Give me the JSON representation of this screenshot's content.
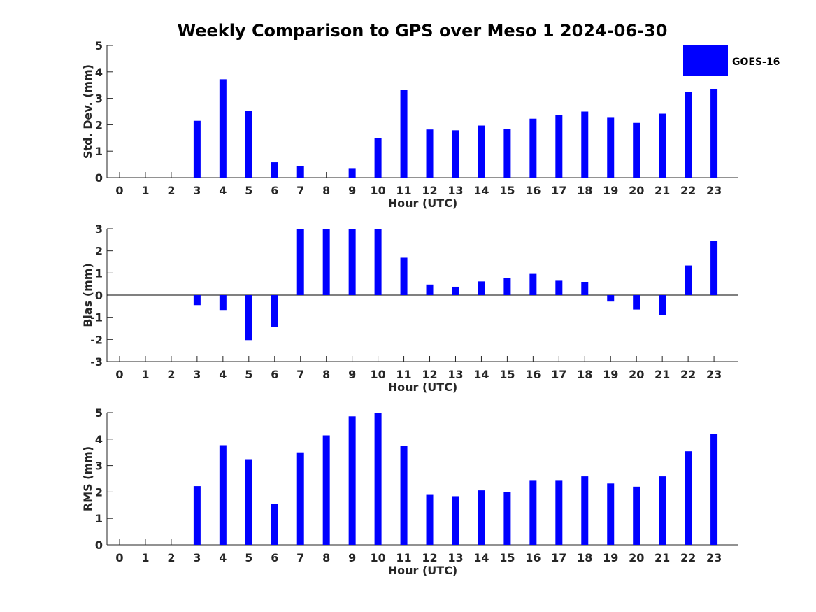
{
  "chart_data": {
    "title": "Weekly Comparison to GPS over Meso 1 2024-06-30",
    "type": "bar",
    "bar_color": "#0000ff",
    "legend": {
      "label": "GOES-16",
      "placement": "top-right"
    },
    "categories": [
      "0",
      "1",
      "2",
      "3",
      "4",
      "5",
      "6",
      "7",
      "8",
      "9",
      "10",
      "11",
      "12",
      "13",
      "14",
      "15",
      "16",
      "17",
      "18",
      "19",
      "20",
      "21",
      "22",
      "23"
    ],
    "panels": [
      {
        "id": "std",
        "xlabel": "Hour (UTC)",
        "ylabel": "Std. Dev. (mm)",
        "ylim": [
          0,
          5
        ],
        "yticks": [
          "0",
          "1",
          "2",
          "3",
          "4",
          "5"
        ],
        "values": [
          0,
          0,
          0,
          2.15,
          3.72,
          2.53,
          0.58,
          0.44,
          0,
          0.36,
          1.5,
          3.31,
          1.82,
          1.79,
          1.97,
          1.84,
          2.23,
          2.37,
          2.5,
          2.29,
          2.07,
          2.42,
          3.24,
          3.36
        ]
      },
      {
        "id": "bias",
        "xlabel": "Hour (UTC)",
        "ylabel": "Bias (mm)",
        "ylim": [
          -3,
          3
        ],
        "yticks": [
          "-3",
          "-2",
          "-1",
          "0",
          "1",
          "2",
          "3"
        ],
        "values": [
          0,
          0,
          0,
          -0.45,
          -0.67,
          -2.03,
          -1.45,
          3.0,
          3.0,
          3.0,
          3.0,
          1.69,
          0.48,
          0.38,
          0.62,
          0.77,
          0.96,
          0.65,
          0.6,
          -0.29,
          -0.65,
          -0.89,
          1.34,
          2.45
        ]
      },
      {
        "id": "rms",
        "xlabel": "Hour (UTC)",
        "ylabel": "RMS (mm)",
        "ylim": [
          0,
          5
        ],
        "yticks": [
          "0",
          "1",
          "2",
          "3",
          "4",
          "5"
        ],
        "values": [
          0,
          0,
          0,
          2.22,
          3.77,
          3.24,
          1.56,
          3.5,
          4.14,
          4.86,
          5.0,
          3.74,
          1.89,
          1.84,
          2.06,
          2.0,
          2.45,
          2.45,
          2.59,
          2.32,
          2.2,
          2.59,
          3.54,
          4.19
        ]
      }
    ]
  }
}
